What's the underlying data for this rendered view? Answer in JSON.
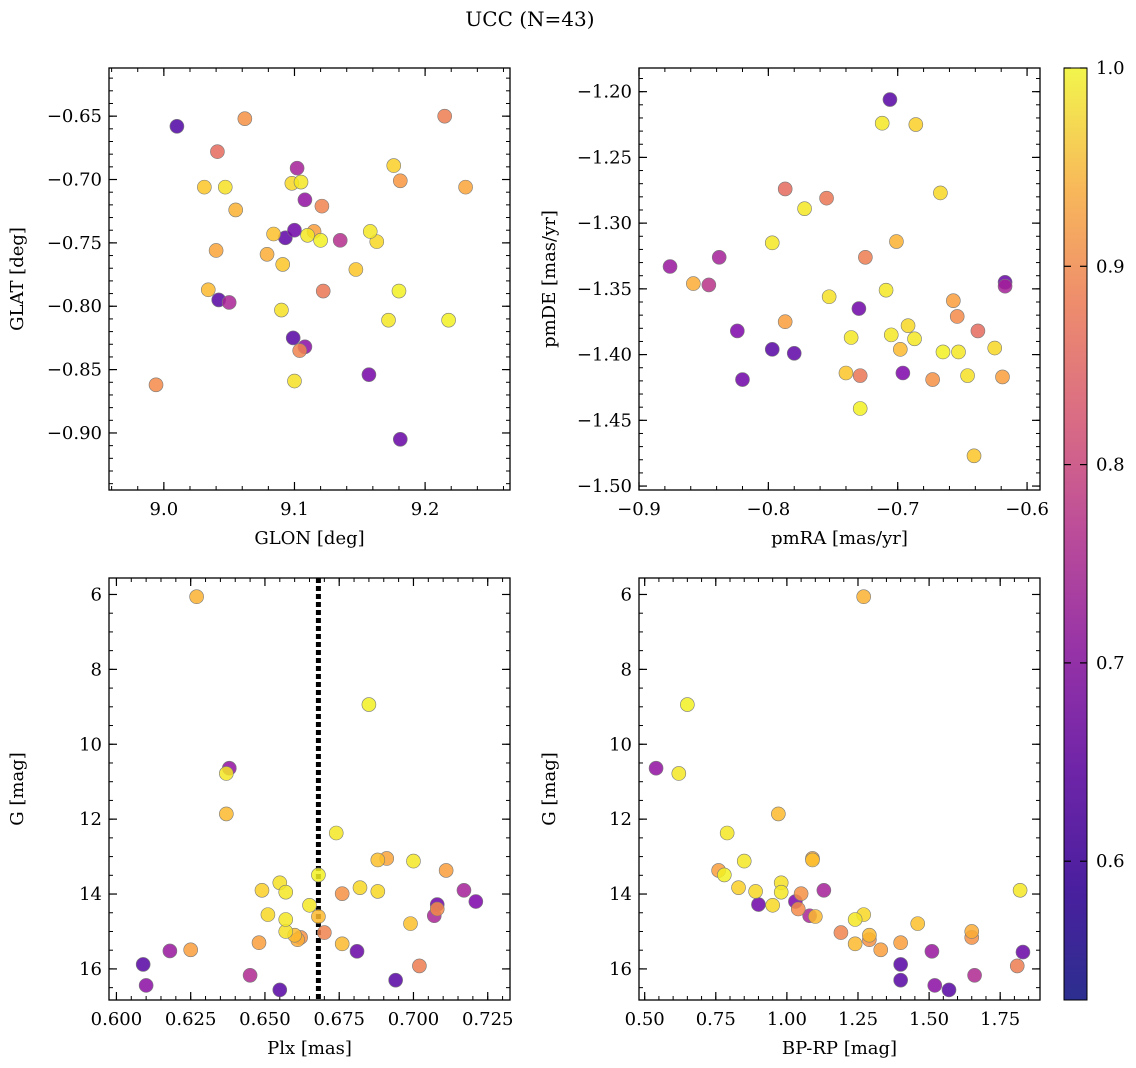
{
  "figure": {
    "title": "UCC (N=43)"
  },
  "colorbar": {
    "range": [
      0.53,
      1.0
    ],
    "ticks": [
      0.6,
      0.7,
      0.8,
      0.9,
      1.0
    ],
    "tick_labels": [
      "0.6",
      "0.7",
      "0.8",
      "0.9",
      "1.0"
    ],
    "colormap": "plasma"
  },
  "chart_data": [
    {
      "type": "scatter",
      "name": "glon-glat",
      "title": "",
      "xlabel": "GLON [deg]",
      "ylabel": "GLAT [deg]",
      "xlim": [
        8.958,
        9.265
      ],
      "ylim": [
        -0.945,
        -0.612
      ],
      "y_inverted": false,
      "xticks": [
        9.0,
        9.1,
        9.2
      ],
      "xtick_labels": [
        "9.0",
        "9.1",
        "9.2"
      ],
      "yticks": [
        -0.65,
        -0.7,
        -0.75,
        -0.8,
        -0.85,
        -0.9
      ],
      "ytick_labels": [
        "−0.65",
        "−0.70",
        "−0.75",
        "−0.80",
        "−0.85",
        "−0.90"
      ],
      "x_minor_step": 0.02,
      "y_minor_step": 0.01,
      "points": [
        {
          "x": 9.01,
          "y": -0.658,
          "c": 0.54
        },
        {
          "x": 9.062,
          "y": -0.652,
          "c": 0.86
        },
        {
          "x": 9.041,
          "y": -0.678,
          "c": 0.8
        },
        {
          "x": 9.031,
          "y": -0.706,
          "c": 0.94
        },
        {
          "x": 9.047,
          "y": -0.706,
          "c": 0.97
        },
        {
          "x": 9.055,
          "y": -0.724,
          "c": 0.91
        },
        {
          "x": 9.04,
          "y": -0.756,
          "c": 0.89
        },
        {
          "x": 9.034,
          "y": -0.787,
          "c": 0.92
        },
        {
          "x": 9.042,
          "y": -0.795,
          "c": 0.55
        },
        {
          "x": 9.05,
          "y": -0.797,
          "c": 0.67
        },
        {
          "x": 8.994,
          "y": -0.862,
          "c": 0.85
        },
        {
          "x": 9.102,
          "y": -0.691,
          "c": 0.66
        },
        {
          "x": 9.098,
          "y": -0.703,
          "c": 0.96
        },
        {
          "x": 9.105,
          "y": -0.702,
          "c": 0.98
        },
        {
          "x": 9.108,
          "y": -0.716,
          "c": 0.63
        },
        {
          "x": 9.121,
          "y": -0.721,
          "c": 0.84
        },
        {
          "x": 9.084,
          "y": -0.743,
          "c": 0.93
        },
        {
          "x": 9.1,
          "y": -0.74,
          "c": 0.58
        },
        {
          "x": 9.093,
          "y": -0.746,
          "c": 0.56
        },
        {
          "x": 9.11,
          "y": -0.744,
          "c": 0.98
        },
        {
          "x": 9.115,
          "y": -0.741,
          "c": 0.88
        },
        {
          "x": 9.12,
          "y": -0.748,
          "c": 0.99
        },
        {
          "x": 9.135,
          "y": -0.748,
          "c": 0.69
        },
        {
          "x": 9.079,
          "y": -0.759,
          "c": 0.9
        },
        {
          "x": 9.091,
          "y": -0.767,
          "c": 0.94
        },
        {
          "x": 9.122,
          "y": -0.788,
          "c": 0.82
        },
        {
          "x": 9.09,
          "y": -0.803,
          "c": 0.97
        },
        {
          "x": 9.099,
          "y": -0.825,
          "c": 0.55
        },
        {
          "x": 9.104,
          "y": -0.835,
          "c": 0.84
        },
        {
          "x": 9.108,
          "y": -0.832,
          "c": 0.62
        },
        {
          "x": 9.1,
          "y": -0.859,
          "c": 0.97
        },
        {
          "x": 9.147,
          "y": -0.771,
          "c": 0.94
        },
        {
          "x": 9.158,
          "y": -0.741,
          "c": 0.98
        },
        {
          "x": 9.163,
          "y": -0.749,
          "c": 0.96
        },
        {
          "x": 9.176,
          "y": -0.689,
          "c": 0.95
        },
        {
          "x": 9.181,
          "y": -0.701,
          "c": 0.87
        },
        {
          "x": 9.18,
          "y": -0.788,
          "c": 0.99
        },
        {
          "x": 9.172,
          "y": -0.811,
          "c": 0.98
        },
        {
          "x": 9.157,
          "y": -0.854,
          "c": 0.59
        },
        {
          "x": 9.181,
          "y": -0.905,
          "c": 0.57
        },
        {
          "x": 9.215,
          "y": -0.65,
          "c": 0.83
        },
        {
          "x": 9.231,
          "y": -0.706,
          "c": 0.89
        },
        {
          "x": 9.218,
          "y": -0.811,
          "c": 0.99
        }
      ]
    },
    {
      "type": "scatter",
      "name": "pmra-pmde",
      "title": "",
      "xlabel": "pmRA [mas/yr]",
      "ylabel": "pmDE [mas/yr]",
      "xlim": [
        -0.9,
        -0.59
      ],
      "ylim": [
        -1.503,
        -1.182
      ],
      "y_inverted": false,
      "xticks": [
        -0.9,
        -0.8,
        -0.7,
        -0.6
      ],
      "xtick_labels": [
        "−0.9",
        "−0.8",
        "−0.7",
        "−0.6"
      ],
      "yticks": [
        -1.2,
        -1.25,
        -1.3,
        -1.35,
        -1.4,
        -1.45,
        -1.5
      ],
      "ytick_labels": [
        "−1.20",
        "−1.25",
        "−1.30",
        "−1.35",
        "−1.40",
        "−1.45",
        "−1.50"
      ],
      "x_minor_step": 0.02,
      "y_minor_step": 0.01,
      "points": [
        {
          "x": -0.876,
          "y": -1.333,
          "c": 0.64
        },
        {
          "x": -0.858,
          "y": -1.346,
          "c": 0.9
        },
        {
          "x": -0.846,
          "y": -1.347,
          "c": 0.7
        },
        {
          "x": -0.838,
          "y": -1.326,
          "c": 0.66
        },
        {
          "x": -0.824,
          "y": -1.382,
          "c": 0.6
        },
        {
          "x": -0.82,
          "y": -1.419,
          "c": 0.58
        },
        {
          "x": -0.797,
          "y": -1.396,
          "c": 0.55
        },
        {
          "x": -0.797,
          "y": -1.315,
          "c": 0.98
        },
        {
          "x": -0.787,
          "y": -1.274,
          "c": 0.8
        },
        {
          "x": -0.787,
          "y": -1.375,
          "c": 0.88
        },
        {
          "x": -0.78,
          "y": -1.399,
          "c": 0.56
        },
        {
          "x": -0.772,
          "y": -1.289,
          "c": 0.98
        },
        {
          "x": -0.755,
          "y": -1.281,
          "c": 0.82
        },
        {
          "x": -0.753,
          "y": -1.356,
          "c": 0.97
        },
        {
          "x": -0.74,
          "y": -1.414,
          "c": 0.94
        },
        {
          "x": -0.736,
          "y": -1.387,
          "c": 0.98
        },
        {
          "x": -0.73,
          "y": -1.365,
          "c": 0.58
        },
        {
          "x": -0.729,
          "y": -1.416,
          "c": 0.82
        },
        {
          "x": -0.729,
          "y": -1.441,
          "c": 0.99
        },
        {
          "x": -0.725,
          "y": -1.326,
          "c": 0.83
        },
        {
          "x": -0.712,
          "y": -1.224,
          "c": 0.98
        },
        {
          "x": -0.709,
          "y": -1.351,
          "c": 0.98
        },
        {
          "x": -0.706,
          "y": -1.206,
          "c": 0.55
        },
        {
          "x": -0.705,
          "y": -1.385,
          "c": 0.98
        },
        {
          "x": -0.701,
          "y": -1.314,
          "c": 0.91
        },
        {
          "x": -0.698,
          "y": -1.396,
          "c": 0.92
        },
        {
          "x": -0.696,
          "y": -1.414,
          "c": 0.6
        },
        {
          "x": -0.692,
          "y": -1.378,
          "c": 0.96
        },
        {
          "x": -0.687,
          "y": -1.388,
          "c": 0.98
        },
        {
          "x": -0.686,
          "y": -1.225,
          "c": 0.95
        },
        {
          "x": -0.673,
          "y": -1.419,
          "c": 0.86
        },
        {
          "x": -0.667,
          "y": -1.277,
          "c": 0.96
        },
        {
          "x": -0.665,
          "y": -1.398,
          "c": 0.99
        },
        {
          "x": -0.657,
          "y": -1.359,
          "c": 0.88
        },
        {
          "x": -0.654,
          "y": -1.371,
          "c": 0.85
        },
        {
          "x": -0.653,
          "y": -1.398,
          "c": 0.98
        },
        {
          "x": -0.646,
          "y": -1.416,
          "c": 0.97
        },
        {
          "x": -0.641,
          "y": -1.477,
          "c": 0.94
        },
        {
          "x": -0.638,
          "y": -1.382,
          "c": 0.8
        },
        {
          "x": -0.625,
          "y": -1.395,
          "c": 0.96
        },
        {
          "x": -0.619,
          "y": -1.417,
          "c": 0.88
        },
        {
          "x": -0.617,
          "y": -1.345,
          "c": 0.57
        },
        {
          "x": -0.617,
          "y": -1.348,
          "c": 0.66
        }
      ]
    },
    {
      "type": "scatter",
      "name": "plx-g",
      "title": "",
      "xlabel": "Plx [mas]",
      "ylabel": "G [mag]",
      "xlim": [
        0.5975,
        0.7325
      ],
      "ylim": [
        16.83,
        5.56
      ],
      "y_inverted": true,
      "xticks": [
        0.6,
        0.625,
        0.65,
        0.675,
        0.7,
        0.725
      ],
      "xtick_labels": [
        "0.600",
        "0.625",
        "0.650",
        "0.675",
        "0.700",
        "0.725"
      ],
      "yticks": [
        6,
        8,
        10,
        12,
        14,
        16
      ],
      "ytick_labels": [
        "6",
        "8",
        "10",
        "12",
        "14",
        "16"
      ],
      "x_minor_step": 0.005,
      "y_minor_step": 0.5,
      "vline": {
        "x": 0.668,
        "style": "dotted"
      },
      "points": [
        {
          "x": 0.627,
          "y": 6.06,
          "c": 0.91
        },
        {
          "x": 0.685,
          "y": 8.94,
          "c": 0.99
        },
        {
          "x": 0.638,
          "y": 10.64,
          "c": 0.63
        },
        {
          "x": 0.637,
          "y": 10.78,
          "c": 0.98
        },
        {
          "x": 0.637,
          "y": 11.86,
          "c": 0.92
        },
        {
          "x": 0.674,
          "y": 12.37,
          "c": 0.98
        },
        {
          "x": 0.688,
          "y": 13.09,
          "c": 0.93
        },
        {
          "x": 0.691,
          "y": 13.05,
          "c": 0.89
        },
        {
          "x": 0.7,
          "y": 13.12,
          "c": 0.98
        },
        {
          "x": 0.711,
          "y": 13.37,
          "c": 0.88
        },
        {
          "x": 0.668,
          "y": 13.49,
          "c": 0.99
        },
        {
          "x": 0.655,
          "y": 13.7,
          "c": 0.97
        },
        {
          "x": 0.649,
          "y": 13.9,
          "c": 0.95
        },
        {
          "x": 0.657,
          "y": 13.95,
          "c": 0.98
        },
        {
          "x": 0.676,
          "y": 13.99,
          "c": 0.86
        },
        {
          "x": 0.682,
          "y": 13.83,
          "c": 0.96
        },
        {
          "x": 0.688,
          "y": 13.93,
          "c": 0.96
        },
        {
          "x": 0.717,
          "y": 13.9,
          "c": 0.66
        },
        {
          "x": 0.721,
          "y": 14.2,
          "c": 0.6
        },
        {
          "x": 0.708,
          "y": 14.28,
          "c": 0.58
        },
        {
          "x": 0.708,
          "y": 14.4,
          "c": 0.85
        },
        {
          "x": 0.707,
          "y": 14.58,
          "c": 0.67
        },
        {
          "x": 0.665,
          "y": 14.3,
          "c": 0.98
        },
        {
          "x": 0.651,
          "y": 14.55,
          "c": 0.96
        },
        {
          "x": 0.657,
          "y": 14.68,
          "c": 0.98
        },
        {
          "x": 0.668,
          "y": 14.6,
          "c": 0.92
        },
        {
          "x": 0.699,
          "y": 14.79,
          "c": 0.93
        },
        {
          "x": 0.657,
          "y": 15.0,
          "c": 0.97
        },
        {
          "x": 0.66,
          "y": 15.1,
          "c": 0.92
        },
        {
          "x": 0.661,
          "y": 15.22,
          "c": 0.9
        },
        {
          "x": 0.662,
          "y": 15.16,
          "c": 0.86
        },
        {
          "x": 0.67,
          "y": 15.03,
          "c": 0.84
        },
        {
          "x": 0.648,
          "y": 15.3,
          "c": 0.88
        },
        {
          "x": 0.676,
          "y": 15.33,
          "c": 0.92
        },
        {
          "x": 0.625,
          "y": 15.49,
          "c": 0.88
        },
        {
          "x": 0.618,
          "y": 15.52,
          "c": 0.64
        },
        {
          "x": 0.681,
          "y": 15.53,
          "c": 0.57
        },
        {
          "x": 0.609,
          "y": 15.88,
          "c": 0.55
        },
        {
          "x": 0.702,
          "y": 15.92,
          "c": 0.83
        },
        {
          "x": 0.645,
          "y": 16.17,
          "c": 0.68
        },
        {
          "x": 0.694,
          "y": 16.3,
          "c": 0.55
        },
        {
          "x": 0.61,
          "y": 16.44,
          "c": 0.62
        },
        {
          "x": 0.655,
          "y": 16.56,
          "c": 0.55
        }
      ]
    },
    {
      "type": "scatter",
      "name": "bprp-g",
      "title": "",
      "xlabel": "BP-RP [mag]",
      "ylabel": "G [mag]",
      "xlim": [
        0.48,
        1.89
      ],
      "ylim": [
        16.83,
        5.56
      ],
      "y_inverted": true,
      "xticks": [
        0.5,
        0.75,
        1.0,
        1.25,
        1.5,
        1.75
      ],
      "xtick_labels": [
        "0.50",
        "0.75",
        "1.00",
        "1.25",
        "1.50",
        "1.75"
      ],
      "yticks": [
        6,
        8,
        10,
        12,
        14,
        16
      ],
      "ytick_labels": [
        "6",
        "8",
        "10",
        "12",
        "14",
        "16"
      ],
      "x_minor_step": 0.05,
      "y_minor_step": 0.5,
      "points": [
        {
          "x": 1.27,
          "y": 6.06,
          "c": 0.91
        },
        {
          "x": 0.65,
          "y": 8.94,
          "c": 0.99
        },
        {
          "x": 0.54,
          "y": 10.64,
          "c": 0.63
        },
        {
          "x": 0.62,
          "y": 10.78,
          "c": 0.98
        },
        {
          "x": 0.97,
          "y": 11.86,
          "c": 0.92
        },
        {
          "x": 0.79,
          "y": 12.37,
          "c": 0.98
        },
        {
          "x": 1.09,
          "y": 13.09,
          "c": 0.93
        },
        {
          "x": 1.09,
          "y": 13.05,
          "c": 0.89
        },
        {
          "x": 0.85,
          "y": 13.12,
          "c": 0.98
        },
        {
          "x": 0.76,
          "y": 13.37,
          "c": 0.88
        },
        {
          "x": 0.78,
          "y": 13.49,
          "c": 0.99
        },
        {
          "x": 0.98,
          "y": 13.7,
          "c": 0.97
        },
        {
          "x": 0.83,
          "y": 13.83,
          "c": 0.95
        },
        {
          "x": 0.89,
          "y": 13.93,
          "c": 0.96
        },
        {
          "x": 0.98,
          "y": 13.95,
          "c": 0.98
        },
        {
          "x": 1.05,
          "y": 13.99,
          "c": 0.86
        },
        {
          "x": 1.13,
          "y": 13.9,
          "c": 0.66
        },
        {
          "x": 1.82,
          "y": 13.9,
          "c": 0.98
        },
        {
          "x": 0.9,
          "y": 14.28,
          "c": 0.58
        },
        {
          "x": 0.95,
          "y": 14.3,
          "c": 0.96
        },
        {
          "x": 1.03,
          "y": 14.2,
          "c": 0.6
        },
        {
          "x": 1.04,
          "y": 14.4,
          "c": 0.85
        },
        {
          "x": 1.08,
          "y": 14.58,
          "c": 0.67
        },
        {
          "x": 1.1,
          "y": 14.6,
          "c": 0.92
        },
        {
          "x": 1.24,
          "y": 14.68,
          "c": 0.98
        },
        {
          "x": 1.27,
          "y": 14.55,
          "c": 0.96
        },
        {
          "x": 1.46,
          "y": 14.79,
          "c": 0.93
        },
        {
          "x": 1.19,
          "y": 15.03,
          "c": 0.84
        },
        {
          "x": 1.29,
          "y": 15.1,
          "c": 0.92
        },
        {
          "x": 1.29,
          "y": 15.22,
          "c": 0.86
        },
        {
          "x": 1.65,
          "y": 15.0,
          "c": 0.9
        },
        {
          "x": 1.65,
          "y": 15.16,
          "c": 0.86
        },
        {
          "x": 1.24,
          "y": 15.33,
          "c": 0.92
        },
        {
          "x": 1.33,
          "y": 15.49,
          "c": 0.88
        },
        {
          "x": 1.4,
          "y": 15.3,
          "c": 0.88
        },
        {
          "x": 1.51,
          "y": 15.53,
          "c": 0.64
        },
        {
          "x": 1.83,
          "y": 15.55,
          "c": 0.57
        },
        {
          "x": 1.4,
          "y": 15.88,
          "c": 0.55
        },
        {
          "x": 1.81,
          "y": 15.92,
          "c": 0.83
        },
        {
          "x": 1.66,
          "y": 16.17,
          "c": 0.68
        },
        {
          "x": 1.4,
          "y": 16.3,
          "c": 0.55
        },
        {
          "x": 1.52,
          "y": 16.44,
          "c": 0.62
        },
        {
          "x": 1.57,
          "y": 16.56,
          "c": 0.55
        }
      ]
    }
  ]
}
